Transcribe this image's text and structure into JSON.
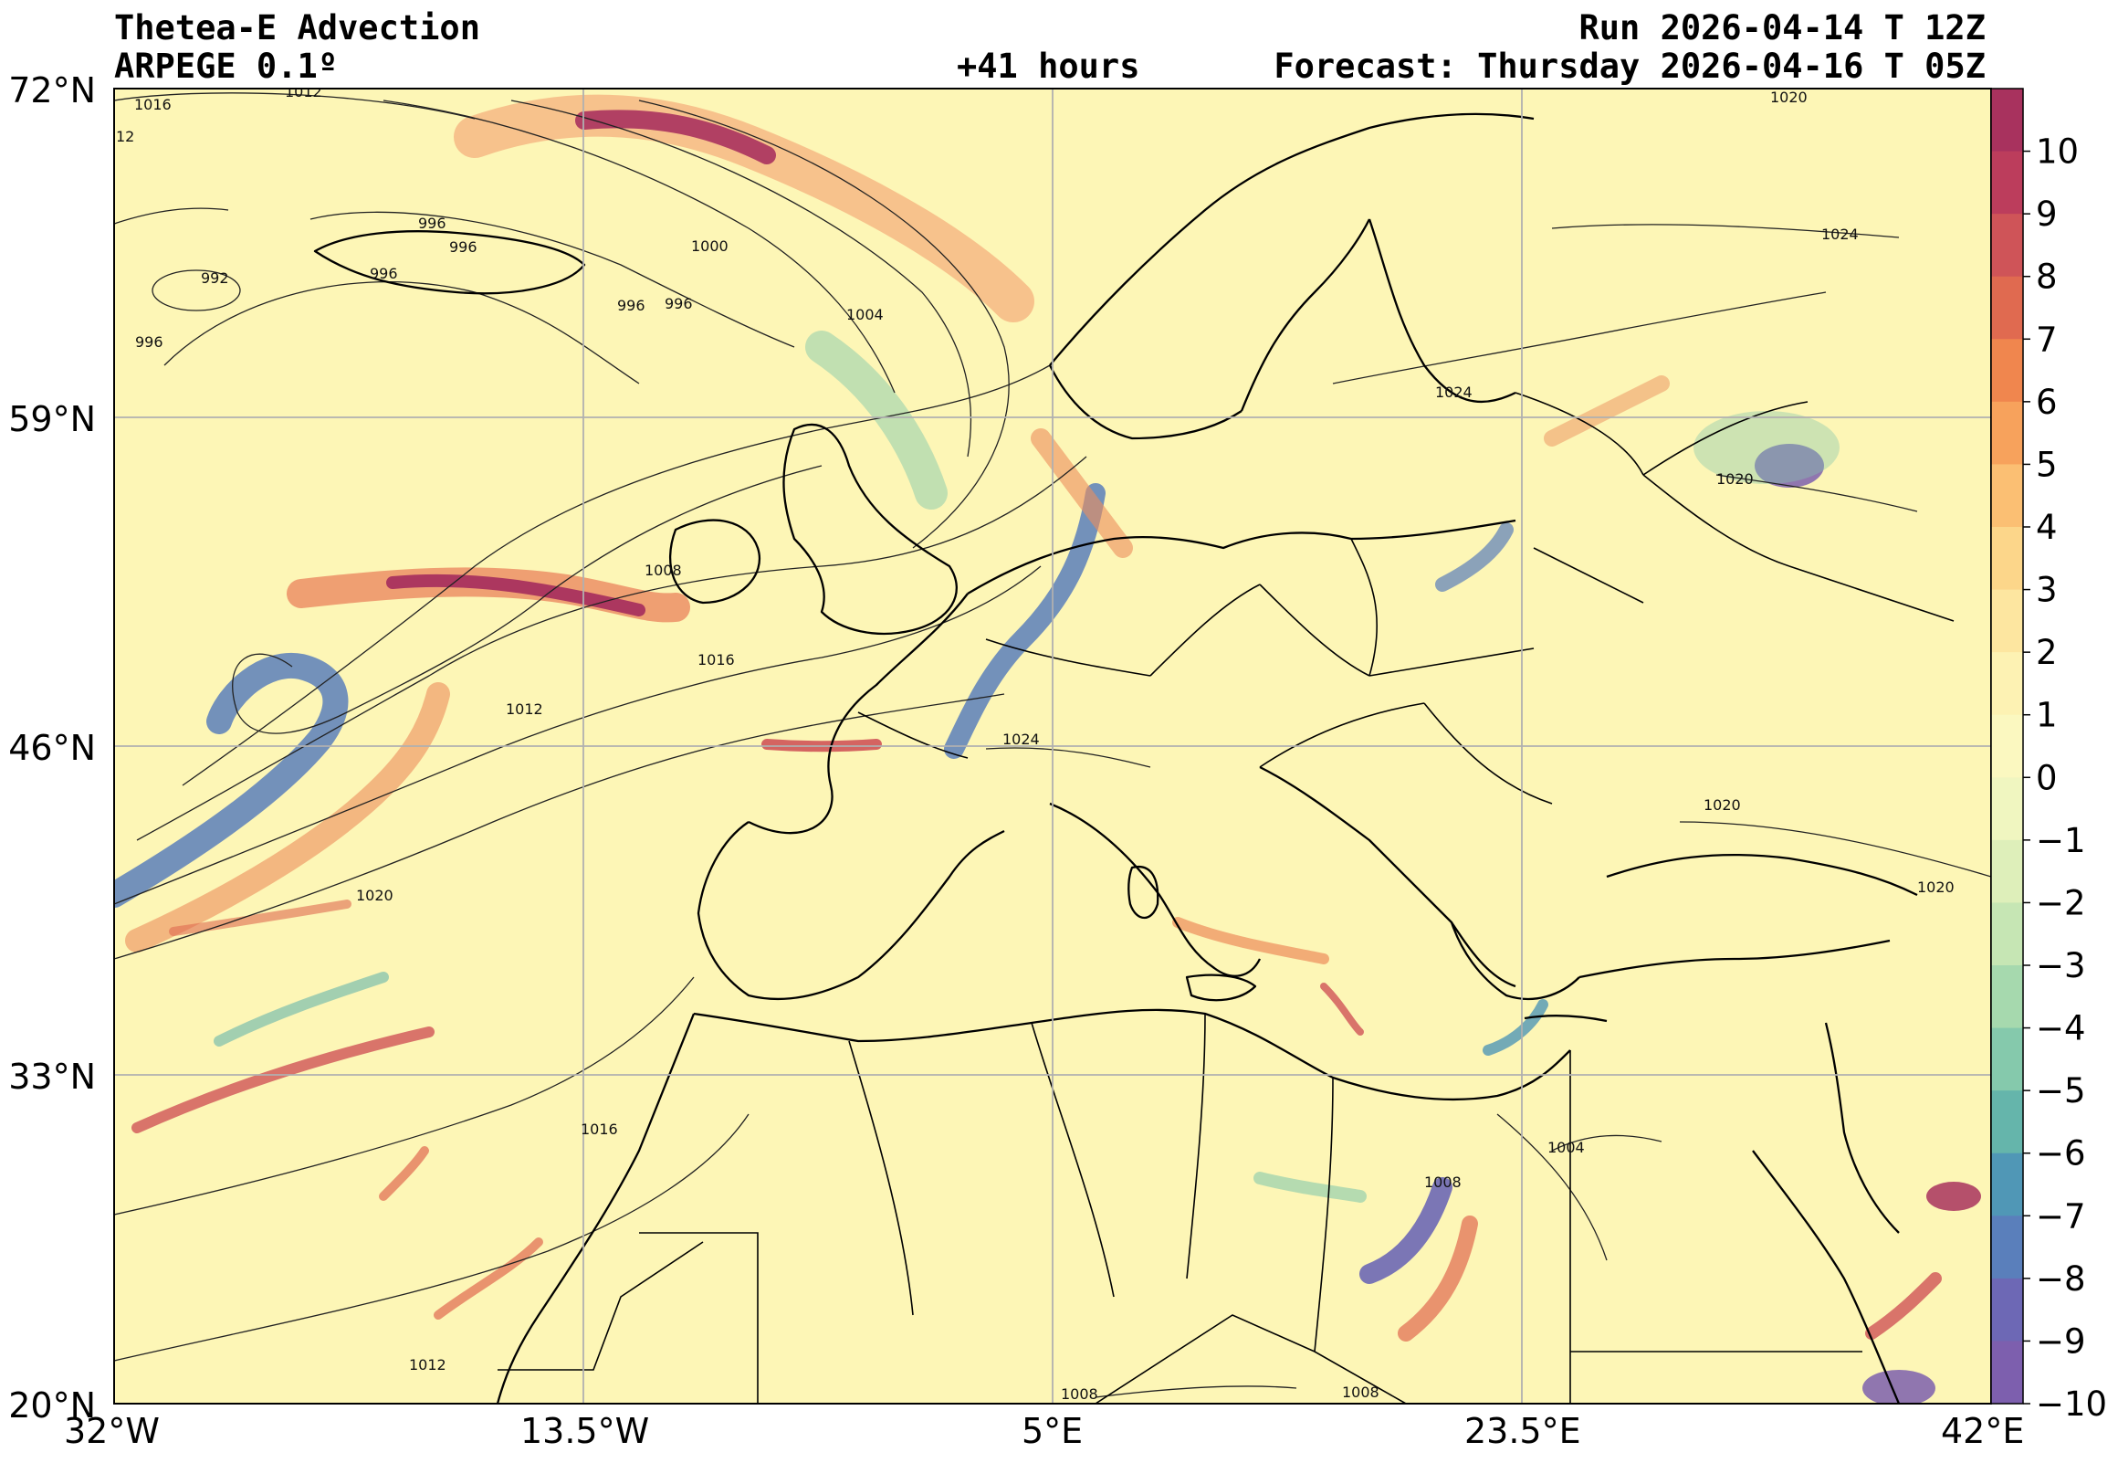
{
  "header": {
    "title": "Thetea-E Advection",
    "model": "ARPEGE 0.1º",
    "run": "Run 2026-04-14 T 12Z",
    "lead": "+41 hours",
    "forecast": "Forecast: Thursday 2026-04-16 T 05Z"
  },
  "axes": {
    "lat_labels": [
      "72°N",
      "59°N",
      "46°N",
      "33°N",
      "20°N"
    ],
    "lon_labels": [
      "32°W",
      "13.5°W",
      "5°E",
      "23.5°E",
      "42°E"
    ]
  },
  "colorbar": {
    "ticks": [
      "10",
      "9",
      "8",
      "7",
      "6",
      "5",
      "4",
      "3",
      "2",
      "1",
      "0",
      "−1",
      "−2",
      "−3",
      "−4",
      "−5",
      "−6",
      "−7",
      "−8",
      "−9",
      "−10"
    ],
    "colors": [
      "#a8325e",
      "#bc3d5c",
      "#cf5458",
      "#e06a50",
      "#f0864e",
      "#f7a25c",
      "#fbbf73",
      "#fcd68a",
      "#fde6a0",
      "#fdf2b3",
      "#fbf8c0",
      "#f0f6c0",
      "#deefba",
      "#c6e6b4",
      "#a6d9ae",
      "#85c9ac",
      "#65b5ab",
      "#5097b6",
      "#5a7fbb",
      "#6d68b5",
      "#7d5fae"
    ]
  },
  "isobars": {
    "labels": [
      "1016",
      "1012",
      "12",
      "996",
      "996",
      "992",
      "996",
      "996",
      "996",
      "1000",
      "1004",
      "996",
      "1008",
      "1016",
      "1012",
      "1020",
      "1016",
      "1012",
      "1024",
      "1024",
      "1020",
      "1020",
      "1020",
      "1020",
      "1004",
      "1008",
      "1008",
      "1008",
      "1024"
    ]
  },
  "colors": {
    "background": "#fdf6b6",
    "land_outline": "#000000",
    "grid": "#b0b0b0"
  }
}
